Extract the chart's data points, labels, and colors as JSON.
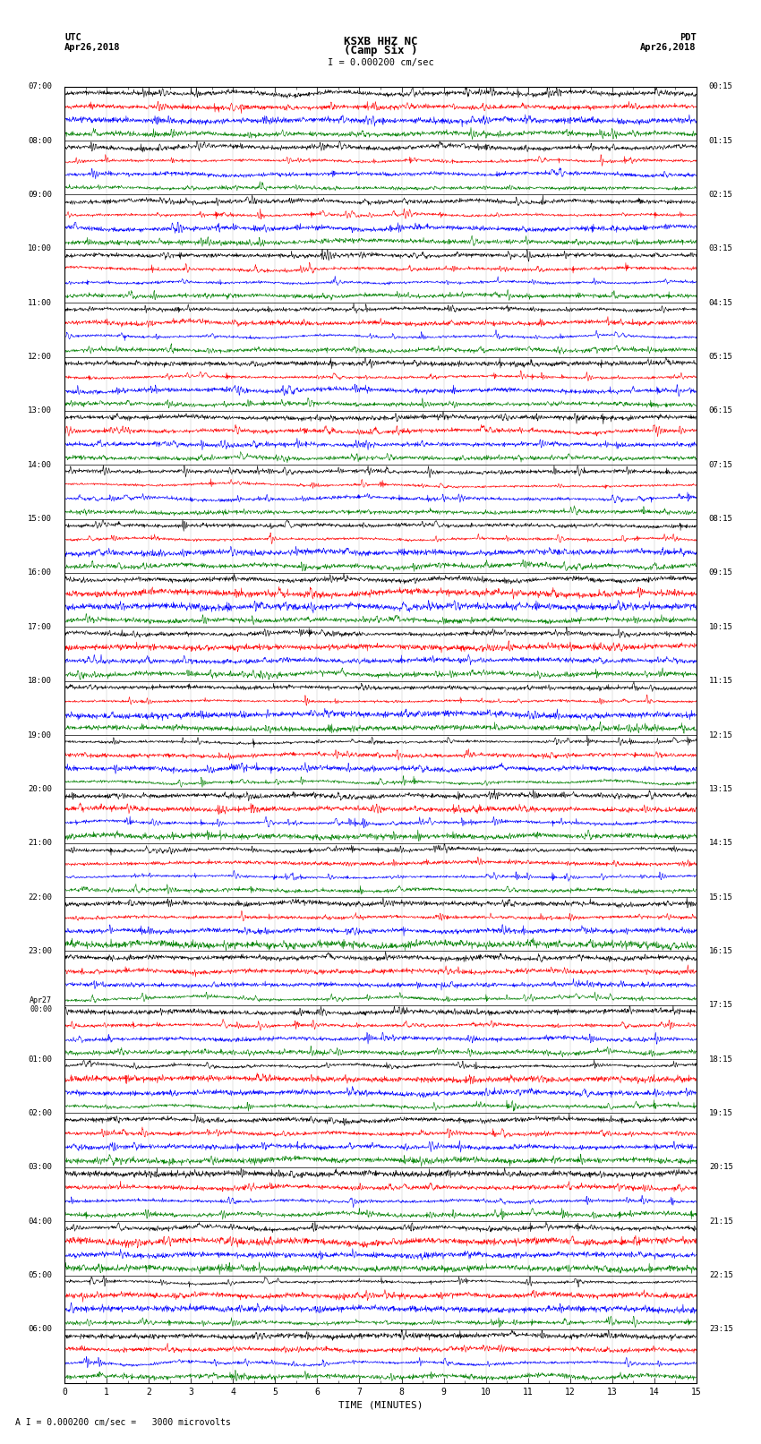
{
  "title_line1": "KSXB HHZ NC",
  "title_line2": "(Camp Six )",
  "scale_label": "I = 0.000200 cm/sec",
  "left_date_label": "UTC\nApr26,2018",
  "right_date_label": "PDT\nApr26,2018",
  "bottom_label": "A I = 0.000200 cm/sec =   3000 microvolts",
  "xlabel": "TIME (MINUTES)",
  "left_times": [
    "07:00",
    "08:00",
    "09:00",
    "10:00",
    "11:00",
    "12:00",
    "13:00",
    "14:00",
    "15:00",
    "16:00",
    "17:00",
    "18:00",
    "19:00",
    "20:00",
    "21:00",
    "22:00",
    "23:00",
    "Apr27\n00:00",
    "01:00",
    "02:00",
    "03:00",
    "04:00",
    "05:00",
    "06:00"
  ],
  "right_times": [
    "00:15",
    "01:15",
    "02:15",
    "03:15",
    "04:15",
    "05:15",
    "06:15",
    "07:15",
    "08:15",
    "09:15",
    "10:15",
    "11:15",
    "12:15",
    "13:15",
    "14:15",
    "15:15",
    "16:15",
    "17:15",
    "18:15",
    "19:15",
    "20:15",
    "21:15",
    "22:15",
    "23:15"
  ],
  "colors": [
    "black",
    "red",
    "blue",
    "green"
  ],
  "n_groups": 24,
  "n_traces_per_group": 4,
  "n_minutes": 15,
  "samples_per_row": 1800,
  "fig_width": 8.5,
  "fig_height": 16.13,
  "bg_color": "white",
  "trace_lw": 0.4,
  "seed": 42
}
